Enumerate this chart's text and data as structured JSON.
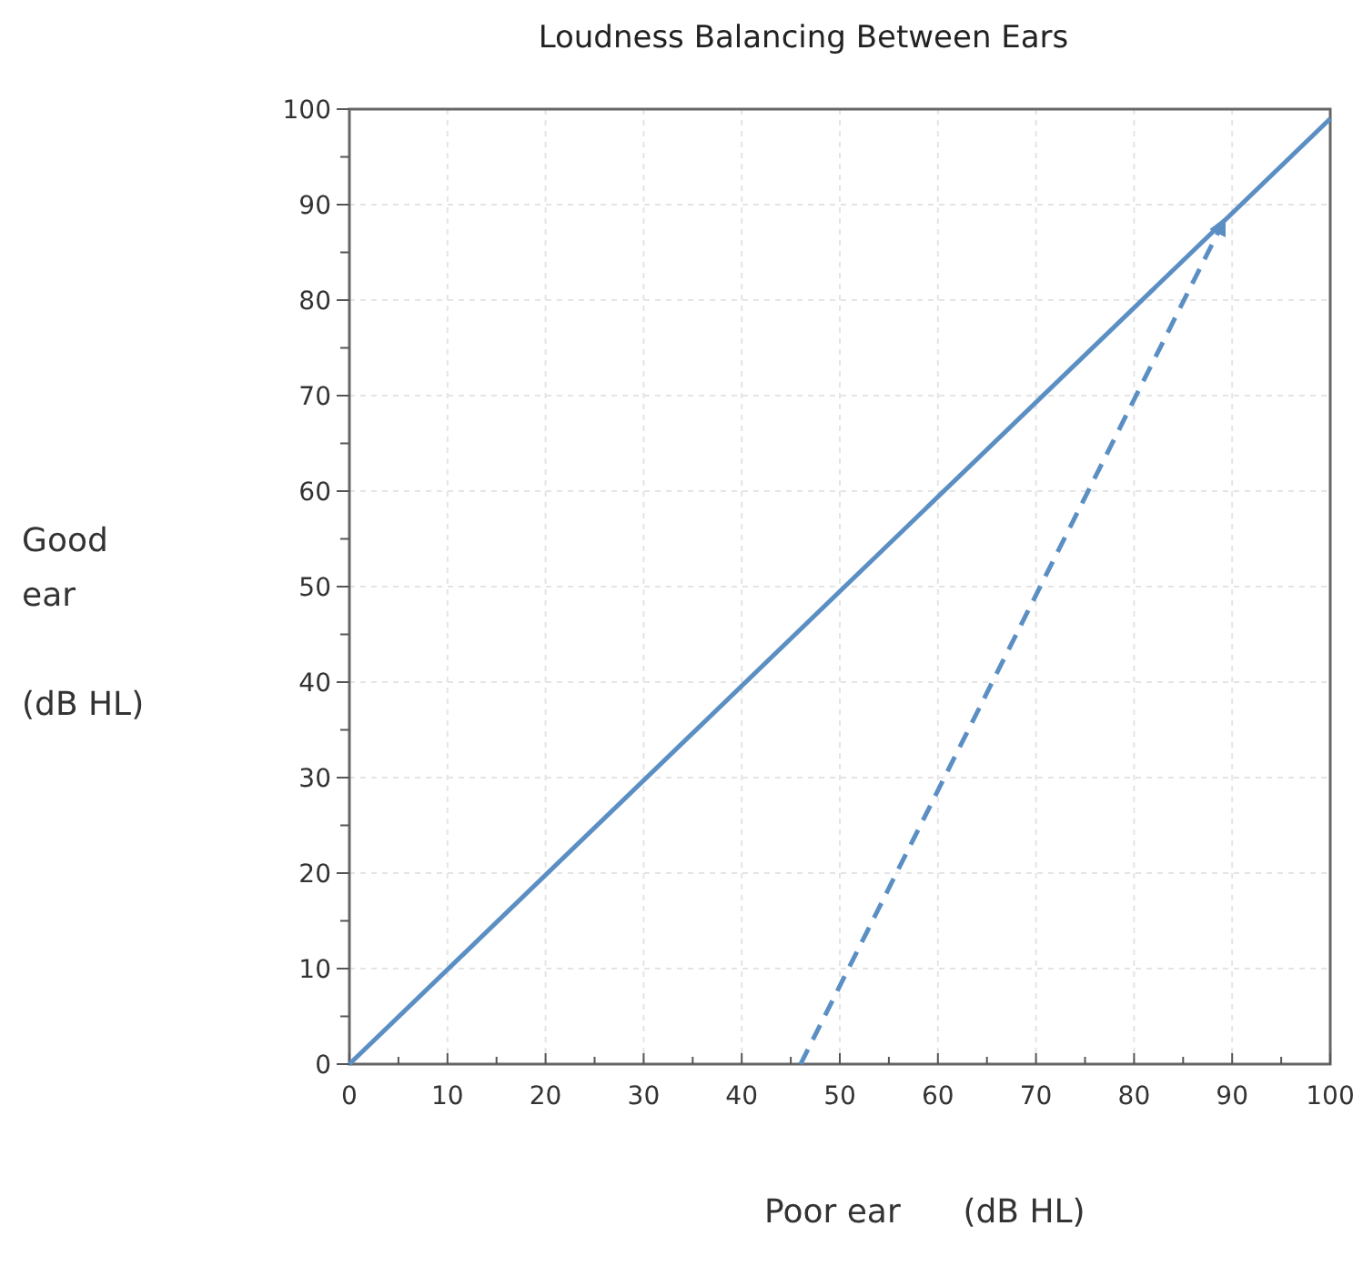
{
  "chart_data": {
    "type": "line",
    "title": "Loudness Balancing Between Ears",
    "xlabel": "Poor ear      (dB HL)",
    "ylabel": "Good\near\n\n(dB HL)",
    "xlim": [
      0,
      100
    ],
    "ylim": [
      0,
      100
    ],
    "xticks": [
      0,
      {
        "value": 5,
        "label": null
      },
      10,
      {
        "value": 15,
        "label": null
      },
      20,
      {
        "value": 25,
        "label": null
      },
      30,
      {
        "value": 35,
        "label": null
      },
      40,
      {
        "value": 45,
        "label": null
      },
      50,
      {
        "value": 55,
        "label": null
      },
      60,
      {
        "value": 65,
        "label": null
      },
      70,
      {
        "value": 75,
        "label": null
      },
      80,
      {
        "value": 85,
        "label": null
      },
      90,
      {
        "value": 95,
        "label": null
      },
      100
    ],
    "yticks": [
      0,
      {
        "value": 5,
        "label": null
      },
      10,
      {
        "value": 15,
        "label": null
      },
      20,
      {
        "value": 25,
        "label": null
      },
      30,
      {
        "value": 35,
        "label": null
      },
      40,
      {
        "value": 45,
        "label": null
      },
      50,
      {
        "value": 55,
        "label": null
      },
      60,
      {
        "value": 65,
        "label": null
      },
      70,
      {
        "value": 75,
        "label": null
      },
      80,
      {
        "value": 85,
        "label": null
      },
      90,
      {
        "value": 95,
        "label": null
      },
      100
    ],
    "grid": true,
    "marker": "none",
    "series": [
      {
        "color": "#5b8fc4",
        "x": [
          0,
          100
        ],
        "values": [
          0,
          99
        ],
        "line_style": "solid"
      },
      {
        "color": "#5b8fc4",
        "x": [
          46,
          89
        ],
        "values": [
          0,
          88
        ],
        "line_style": "dashed"
      }
    ]
  }
}
